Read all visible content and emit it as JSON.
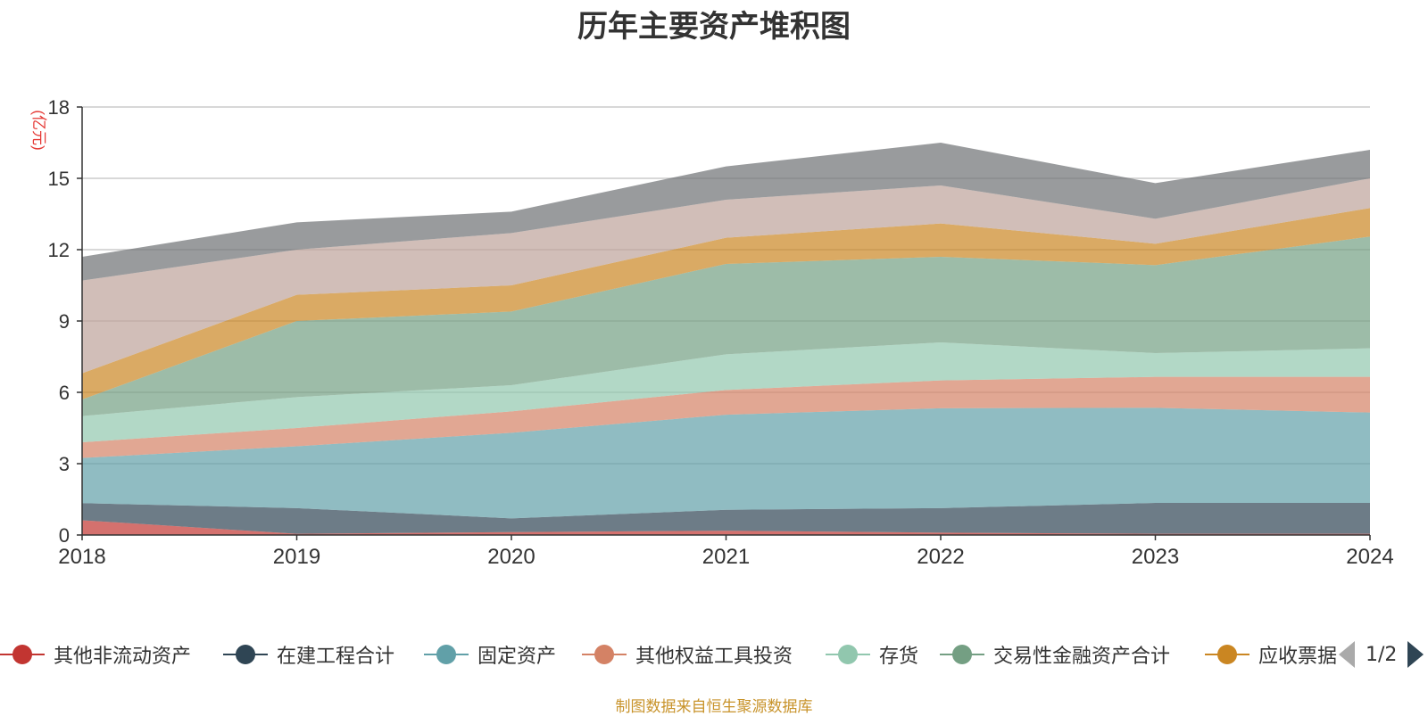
{
  "chart_data": {
    "type": "area",
    "stacked": true,
    "title": "历年主要资产堆积图",
    "unit_label": "(亿元)",
    "categories": [
      "2018",
      "2019",
      "2020",
      "2021",
      "2022",
      "2023",
      "2024"
    ],
    "ylim": [
      0,
      18
    ],
    "yticks": [
      0,
      3,
      6,
      9,
      12,
      15,
      18
    ],
    "grid": true,
    "legend_position": "bottom",
    "series": [
      {
        "name": "其他非流动资产",
        "color": "#c23531",
        "values": [
          0.62,
          0.05,
          0.12,
          0.18,
          0.1,
          0.05,
          0.05
        ]
      },
      {
        "name": "在建工程合计",
        "color": "#2f4554",
        "values": [
          0.72,
          1.08,
          0.58,
          0.88,
          1.03,
          1.3,
          1.3
        ]
      },
      {
        "name": "固定资产",
        "color": "#61a0a8",
        "values": [
          1.9,
          2.6,
          3.6,
          4.0,
          4.2,
          4.0,
          3.8
        ]
      },
      {
        "name": "其他权益工具投资",
        "color": "#d48265",
        "values": [
          0.66,
          0.77,
          0.9,
          1.04,
          1.17,
          1.3,
          1.5
        ]
      },
      {
        "name": "存货",
        "color": "#91c7ae",
        "values": [
          1.1,
          1.3,
          1.1,
          1.5,
          1.6,
          1.0,
          1.2
        ]
      },
      {
        "name": "交易性金融资产合计",
        "color": "#749f83",
        "values": [
          0.7,
          3.2,
          3.1,
          3.8,
          3.6,
          3.7,
          4.7
        ]
      },
      {
        "name": "应收票据",
        "color": "#ca8622",
        "values": [
          1.1,
          1.1,
          1.1,
          1.1,
          1.4,
          0.9,
          1.2
        ]
      },
      {
        "name": "",
        "color": "#bda29a",
        "values": [
          3.9,
          1.9,
          2.2,
          1.6,
          1.6,
          1.05,
          1.25
        ]
      },
      {
        "name": "",
        "color": "#6e7074",
        "values": [
          1.0,
          1.15,
          0.9,
          1.4,
          1.8,
          1.5,
          1.2
        ]
      }
    ]
  },
  "legend": {
    "page_indicator": "1/2"
  },
  "footer": {
    "source_text": "制图数据来自恒生聚源数据库"
  }
}
